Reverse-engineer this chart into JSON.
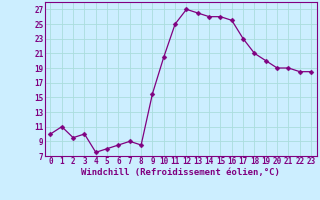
{
  "x": [
    0,
    1,
    2,
    3,
    4,
    5,
    6,
    7,
    8,
    9,
    10,
    11,
    12,
    13,
    14,
    15,
    16,
    17,
    18,
    19,
    20,
    21,
    22,
    23
  ],
  "y": [
    10.0,
    11.0,
    9.5,
    10.0,
    7.5,
    8.0,
    8.5,
    9.0,
    8.5,
    15.5,
    20.5,
    25.0,
    27.0,
    26.5,
    26.0,
    26.0,
    25.5,
    23.0,
    21.0,
    20.0,
    19.0,
    19.0,
    18.5,
    18.5
  ],
  "line_color": "#800080",
  "marker": "D",
  "marker_size": 2.5,
  "bg_color": "#cceeff",
  "grid_color": "#aadddd",
  "xlabel": "Windchill (Refroidissement éolien,°C)",
  "xlim": [
    -0.5,
    23.5
  ],
  "ylim": [
    7,
    28
  ],
  "yticks": [
    7,
    9,
    11,
    13,
    15,
    17,
    19,
    21,
    23,
    25,
    27
  ],
  "xticks": [
    0,
    1,
    2,
    3,
    4,
    5,
    6,
    7,
    8,
    9,
    10,
    11,
    12,
    13,
    14,
    15,
    16,
    17,
    18,
    19,
    20,
    21,
    22,
    23
  ],
  "tick_color": "#800080",
  "spine_color": "#800080"
}
